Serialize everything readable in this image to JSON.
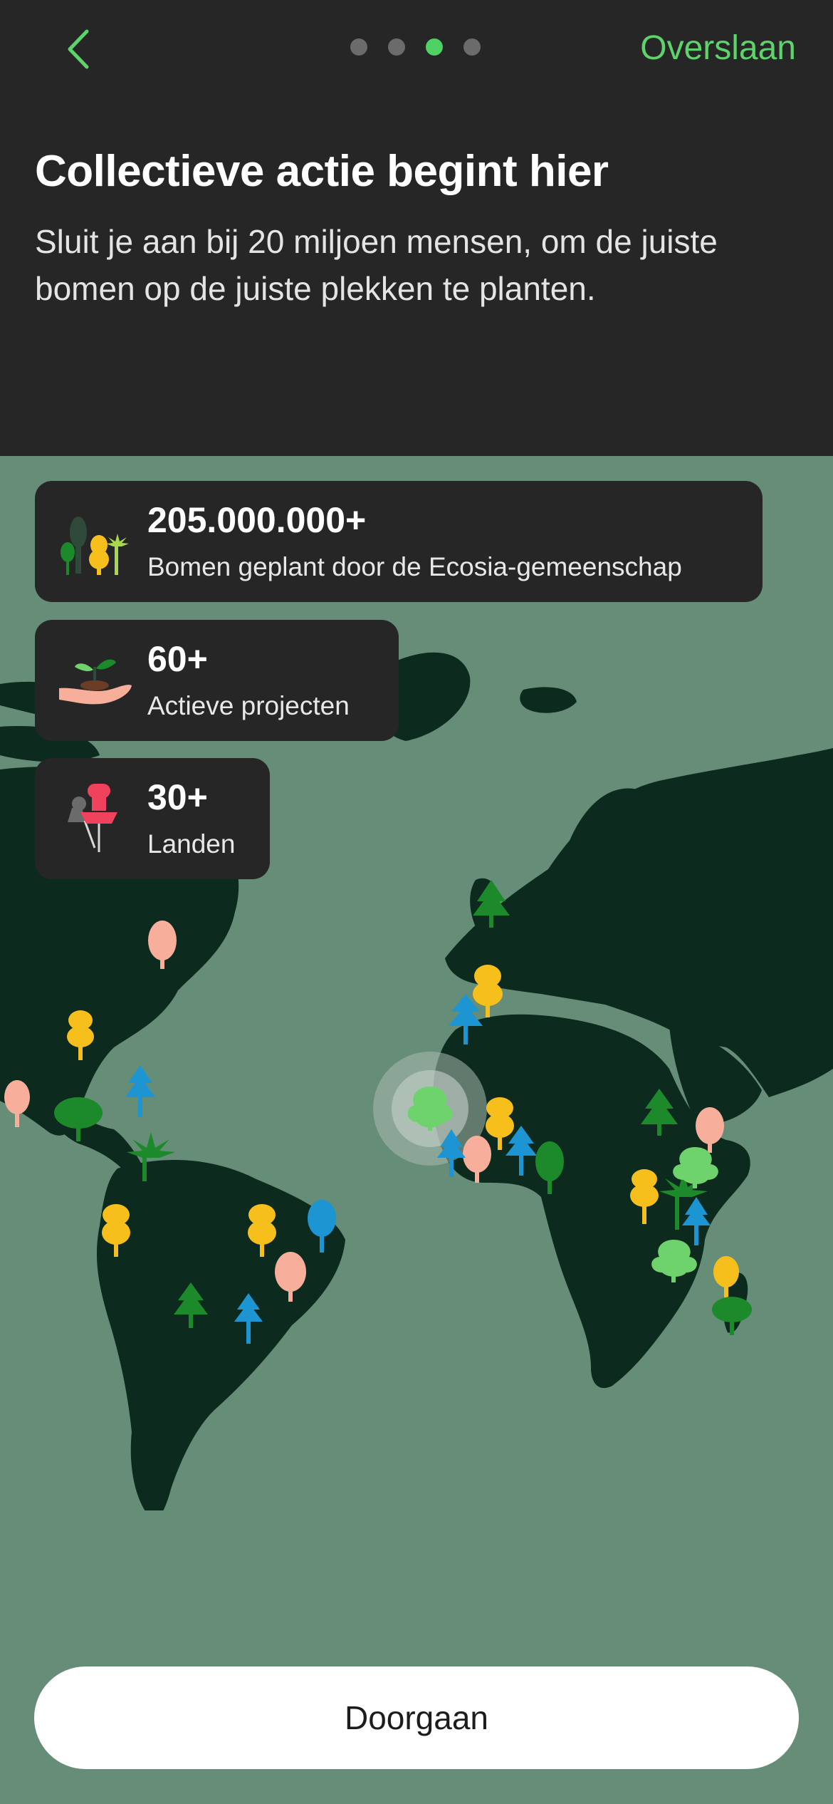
{
  "nav": {
    "back_icon": "chevron-left-icon",
    "skip_label": "Overslaan",
    "page_count": 4,
    "active_page": 3
  },
  "hero": {
    "title": "Collectieve actie begint hier",
    "subtitle": "Sluit je aan bij 20 miljoen mensen, om de juiste bomen op de juiste plekken te planten."
  },
  "stats": [
    {
      "value": "205.000.000+",
      "label": "Bomen geplant door de Ecosia-gemeenschap",
      "icon": "trees-icon"
    },
    {
      "value": "60+",
      "label": "Actieve projecten",
      "icon": "sapling-hand-icon"
    },
    {
      "value": "30+",
      "label": "Landen",
      "icon": "map-pin-icon"
    }
  ],
  "footer": {
    "continue_label": "Doorgaan"
  },
  "colors": {
    "accent": "#5ed26b",
    "header_bg": "#262626",
    "map_ocean": "#668d78",
    "map_land": "#0c2a1e",
    "tree_yellow": "#f6bf1c",
    "tree_blue": "#1d95d3",
    "tree_green": "#1c8a2a",
    "tree_lightgreen": "#6fd36d",
    "tree_peach": "#f7ae9a",
    "pin_red": "#f0425d"
  }
}
